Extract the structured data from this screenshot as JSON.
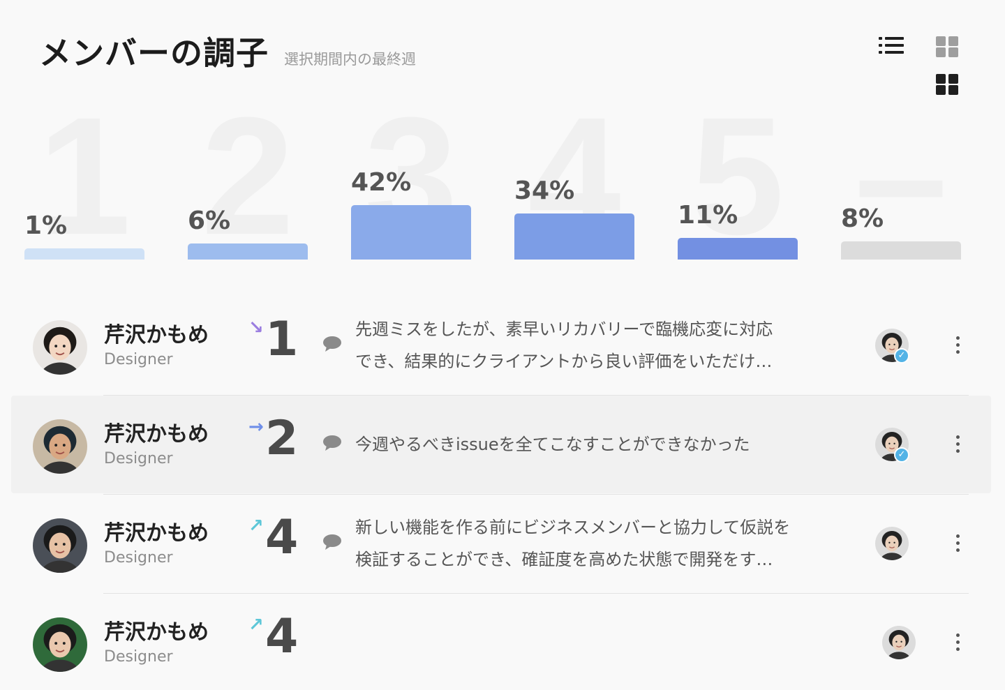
{
  "header": {
    "title": "メンバーの調子",
    "subtitle": "選択期間内の最終週"
  },
  "view_toggle": {
    "icons": [
      "list-icon",
      "grid-icon",
      "grid-icon"
    ]
  },
  "chart_data": {
    "type": "bar",
    "categories": [
      "1",
      "2",
      "3",
      "4",
      "5",
      "–"
    ],
    "values": [
      1,
      6,
      42,
      34,
      11,
      8
    ],
    "value_labels": [
      "1%",
      "6%",
      "42%",
      "34%",
      "11%",
      "8%"
    ],
    "colors": [
      "#cfe1f6",
      "#9dbcee",
      "#8aaaea",
      "#7c9de6",
      "#7390e2",
      "#dcdcdc"
    ],
    "ylim": [
      0,
      42
    ]
  },
  "members": [
    {
      "name": "芹沢かもめ",
      "role": "Designer",
      "trend": "↘",
      "trend_color": "#9b7ee0",
      "score": "1",
      "comment_lines": [
        "先週ミスをしたが、素早いリカバリーで臨機応変に対応",
        "でき、結果的にクライアントから良い評価をいただけ…"
      ],
      "reviewed": true
    },
    {
      "name": "芹沢かもめ",
      "role": "Designer",
      "trend": "→",
      "trend_color": "#6e8ee8",
      "score": "2",
      "comment_lines": [
        "今週やるべきissueを全てこなすことができなかった"
      ],
      "reviewed": true
    },
    {
      "name": "芹沢かもめ",
      "role": "Designer",
      "trend": "↗",
      "trend_color": "#5ec7d8",
      "score": "4",
      "comment_lines": [
        "新しい機能を作る前にビジネスメンバーと協力して仮説を",
        "検証することができ、確証度を高めた状態で開発をす…"
      ],
      "reviewed": false
    },
    {
      "name": "芹沢かもめ",
      "role": "Designer",
      "trend": "↗",
      "trend_color": "#5ec7d8",
      "score": "4",
      "comment_lines": [],
      "reviewed": false
    }
  ]
}
